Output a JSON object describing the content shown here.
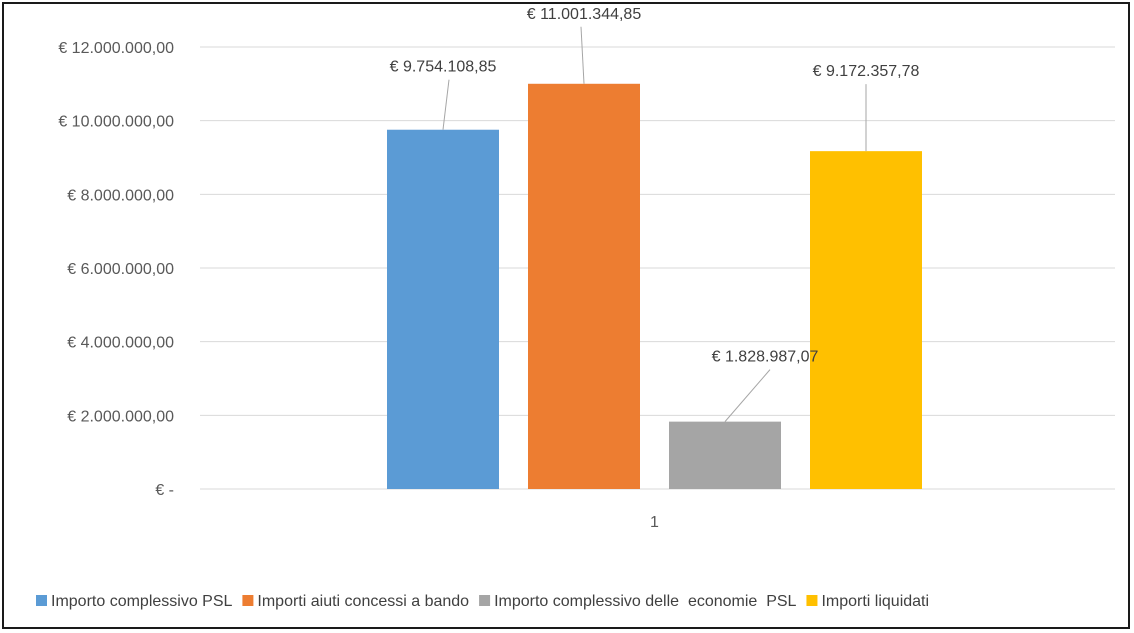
{
  "chart_data": {
    "type": "bar",
    "categories": [
      "1"
    ],
    "series": [
      {
        "name": "Importo complessivo PSL",
        "values": [
          9754108.85
        ],
        "label": "€ 9.754.108,85",
        "color": "#5B9BD5"
      },
      {
        "name": "Importi aiuti concessi a bando",
        "values": [
          11001344.85
        ],
        "label": "€ 11.001.344,85",
        "color": "#ED7D31"
      },
      {
        "name": "Importo complessivo delle  economie  PSL",
        "values": [
          1828987.07
        ],
        "label": "€ 1.828.987,07",
        "color": "#A5A5A5"
      },
      {
        "name": "Importi liquidati",
        "values": [
          9172357.78
        ],
        "label": "€ 9.172.357,78",
        "color": "#FFC000"
      }
    ],
    "ylim": [
      0,
      12000000
    ],
    "yticks": [
      {
        "value": 0,
        "label": "€ -"
      },
      {
        "value": 2000000,
        "label": "€ 2.000.000,00"
      },
      {
        "value": 4000000,
        "label": "€ 4.000.000,00"
      },
      {
        "value": 6000000,
        "label": "€ 6.000.000,00"
      },
      {
        "value": 8000000,
        "label": "€ 8.000.000,00"
      },
      {
        "value": 10000000,
        "label": "€ 10.000.000,00"
      },
      {
        "value": 12000000,
        "label": "€ 12.000.000,00"
      }
    ],
    "grid": true,
    "legend": "bottom",
    "title": "",
    "xlabel": "",
    "ylabel": ""
  }
}
